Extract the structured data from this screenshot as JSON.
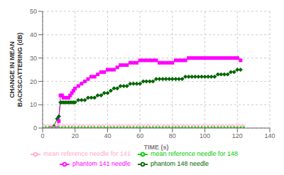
{
  "chart_data": {
    "type": "line",
    "xlabel": "TIME (s)",
    "ylabel": "CHANGE IN MEAN\nBACKSCATTERING (dB)",
    "xlim": [
      0,
      140
    ],
    "ylim": [
      0,
      50
    ],
    "xticks": [
      0,
      20,
      40,
      60,
      80,
      100,
      120,
      140
    ],
    "yticks": [
      0,
      10,
      20,
      30,
      40,
      50
    ],
    "grid": true,
    "legend": "bottom",
    "series": [
      {
        "name": "phantom 148 needle",
        "color": "#006600",
        "marker": "diamond",
        "line_style": "solid",
        "x": [
          5,
          7,
          9,
          10,
          11,
          12,
          13,
          14,
          15,
          16,
          17,
          18,
          19,
          20,
          22,
          24,
          26,
          28,
          30,
          32,
          34,
          36,
          38,
          40,
          42,
          44,
          46,
          48,
          50,
          52,
          54,
          56,
          58,
          60,
          62,
          64,
          66,
          68,
          70,
          72,
          74,
          76,
          78,
          80,
          82,
          84,
          86,
          88,
          90,
          92,
          94,
          96,
          98,
          100,
          102,
          104,
          106,
          108,
          110,
          112,
          114,
          116,
          118,
          120,
          122
        ],
        "values": [
          0,
          1,
          4,
          5,
          11,
          11,
          11,
          11,
          11,
          11,
          11,
          11,
          11,
          11,
          12,
          12,
          12,
          13,
          13,
          13,
          14,
          14,
          15,
          15,
          16,
          17,
          17,
          18,
          18,
          18,
          19,
          19,
          19,
          19,
          20,
          20,
          20,
          20,
          21,
          21,
          21,
          21,
          21,
          21,
          21,
          21,
          21,
          22,
          22,
          22,
          22,
          22,
          22,
          22,
          22,
          22,
          22,
          23,
          23,
          23,
          23,
          24,
          24,
          25,
          25
        ]
      },
      {
        "name": "phantom 141 needle",
        "color": "#ff00ff",
        "marker": "square",
        "line_style": "solid",
        "x": [
          5,
          7,
          9,
          10,
          11,
          12,
          13,
          14,
          15,
          16,
          17,
          18,
          19,
          20,
          22,
          24,
          26,
          28,
          30,
          32,
          34,
          36,
          38,
          40,
          42,
          44,
          46,
          48,
          50,
          52,
          54,
          56,
          58,
          60,
          62,
          64,
          66,
          68,
          70,
          72,
          74,
          76,
          78,
          80,
          82,
          84,
          86,
          88,
          90,
          92,
          94,
          96,
          98,
          100,
          102,
          104,
          106,
          108,
          110,
          112,
          114,
          116,
          118,
          120,
          122
        ],
        "values": [
          0,
          0,
          0,
          3,
          14,
          14,
          13,
          13,
          13,
          13,
          14,
          15,
          16,
          17,
          18,
          19,
          20,
          21,
          22,
          22,
          23,
          24,
          24,
          25,
          25,
          25,
          26,
          27,
          27,
          27,
          28,
          28,
          28,
          29,
          29,
          29,
          29,
          29,
          29,
          28,
          28,
          28,
          28,
          28,
          29,
          29,
          29,
          29,
          30,
          30,
          30,
          30,
          30,
          30,
          30,
          30,
          30,
          30,
          30,
          30,
          30,
          30,
          30,
          30,
          29
        ]
      },
      {
        "name": "mean reference needle for 148",
        "color": "#00cc00",
        "marker": "triangle",
        "line_style": "solid",
        "x": [
          0,
          2,
          4,
          6,
          8,
          10,
          12,
          14,
          16,
          18,
          20,
          22,
          24,
          26,
          28,
          30,
          32,
          34,
          36,
          38,
          40,
          42,
          44,
          46,
          48,
          50,
          52,
          54,
          56,
          58,
          60,
          62,
          64,
          66,
          68,
          70,
          72,
          74,
          76,
          78,
          80,
          82,
          84,
          86,
          88,
          90,
          92,
          94,
          96,
          98,
          100,
          102,
          104,
          106,
          108,
          110,
          112,
          114,
          116,
          118,
          120,
          122,
          124
        ],
        "values": [
          0,
          0,
          0,
          0,
          0,
          0,
          0,
          0,
          0,
          0,
          0,
          0,
          0,
          0,
          0,
          0,
          0,
          0,
          0,
          0,
          0,
          0,
          0,
          0,
          0,
          0,
          0,
          0,
          0,
          0,
          0,
          0,
          0,
          0,
          0,
          0,
          0,
          0,
          0,
          0,
          0,
          0,
          0,
          0,
          0,
          0,
          0,
          0,
          0,
          0,
          0,
          0,
          0,
          0,
          0,
          0,
          0,
          0,
          0,
          0,
          0,
          0,
          0
        ]
      },
      {
        "name": "mean reference needle for 141",
        "color": "#ffaacc",
        "marker": "x",
        "line_style": "dashed",
        "x": [
          0,
          2,
          4,
          6,
          8,
          10,
          12,
          14,
          16,
          18,
          20,
          22,
          24,
          26,
          28,
          30,
          32,
          34,
          36,
          38,
          40,
          42,
          44,
          46,
          48,
          50,
          52,
          54,
          56,
          58,
          60,
          62,
          64,
          66,
          68,
          70,
          72,
          74,
          76,
          78,
          80,
          82,
          84,
          86,
          88,
          90,
          92,
          94,
          96,
          98,
          100,
          102,
          104,
          106,
          108,
          110,
          112,
          114,
          116,
          118,
          120,
          122,
          124
        ],
        "values": [
          1,
          1,
          1,
          1,
          1,
          1,
          1,
          1,
          1,
          1,
          1,
          1,
          1,
          1,
          1,
          1,
          1,
          1,
          1,
          1,
          1,
          1,
          1,
          1,
          1,
          1,
          1,
          1,
          1,
          1,
          1,
          1,
          1,
          1,
          1,
          1,
          1,
          1,
          1,
          1,
          1,
          1,
          1,
          1,
          1,
          1,
          1,
          1,
          1,
          1,
          1,
          1,
          1,
          1,
          1,
          1,
          1,
          1,
          1,
          1,
          1,
          1,
          1
        ]
      }
    ]
  }
}
